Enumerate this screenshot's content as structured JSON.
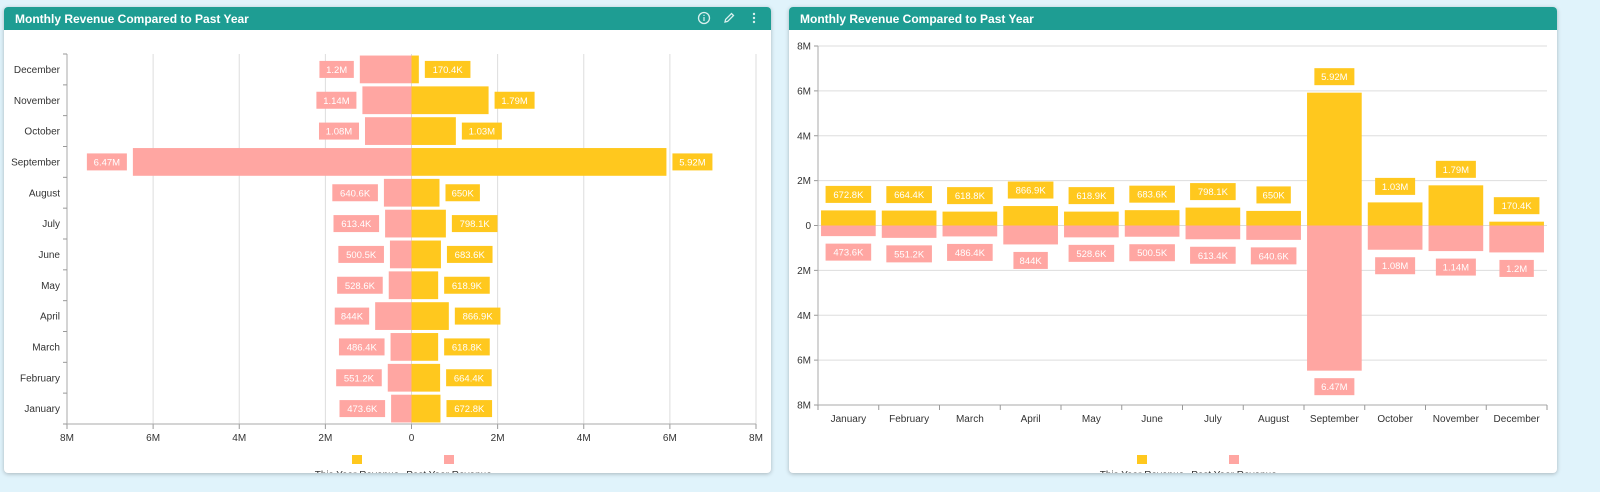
{
  "colors": {
    "header": "#1e9d93",
    "this_year": "#ffc81e",
    "past_year": "#ffa6a2",
    "grid": "#dddddd",
    "axis_text": "#333333"
  },
  "panels": [
    {
      "title": "Monthly Revenue Compared to Past Year",
      "icons": [
        "info-icon",
        "edit-icon",
        "more-vertical-icon"
      ]
    },
    {
      "title": "Monthly Revenue Compared to Past Year"
    }
  ],
  "chart_data": [
    {
      "type": "bar",
      "orientation": "horizontal",
      "categories": [
        "January",
        "February",
        "March",
        "April",
        "May",
        "June",
        "July",
        "August",
        "September",
        "October",
        "November",
        "December"
      ],
      "series": [
        {
          "name": "This Year Revenue",
          "values": [
            672800,
            664400,
            618800,
            866900,
            618900,
            683600,
            798100,
            650000,
            5920000,
            1030000,
            1790000,
            170400
          ],
          "labels": [
            "672.8K",
            "664.4K",
            "618.8K",
            "866.9K",
            "618.9K",
            "683.6K",
            "798.1K",
            "650K",
            "5.92M",
            "1.03M",
            "1.79M",
            "170.4K"
          ]
        },
        {
          "name": "Past Year Revenue",
          "values": [
            473600,
            551200,
            486400,
            844000,
            528600,
            500500,
            613400,
            640600,
            6470000,
            1080000,
            1140000,
            1200000
          ],
          "labels": [
            "473.6K",
            "551.2K",
            "486.4K",
            "844K",
            "528.6K",
            "500.5K",
            "613.4K",
            "640.6K",
            "6.47M",
            "1.08M",
            "1.14M",
            "1.2M"
          ]
        }
      ],
      "value_axis": {
        "min": -8000000,
        "max": 8000000,
        "ticks": [
          -8000000,
          -6000000,
          -4000000,
          -2000000,
          0,
          2000000,
          4000000,
          6000000,
          8000000
        ],
        "tick_labels": [
          "8M",
          "6M",
          "4M",
          "2M",
          "0",
          "2M",
          "4M",
          "6M",
          "8M"
        ]
      },
      "grid": true,
      "legend": "bottom-center"
    },
    {
      "type": "bar",
      "orientation": "vertical",
      "categories": [
        "January",
        "February",
        "March",
        "April",
        "May",
        "June",
        "July",
        "August",
        "September",
        "October",
        "November",
        "December"
      ],
      "series": [
        {
          "name": "This Year Revenue",
          "values": [
            672800,
            664400,
            618800,
            866900,
            618900,
            683600,
            798100,
            650000,
            5920000,
            1030000,
            1790000,
            170400
          ],
          "labels": [
            "672.8K",
            "664.4K",
            "618.8K",
            "866.9K",
            "618.9K",
            "683.6K",
            "798.1K",
            "650K",
            "5.92M",
            "1.03M",
            "1.79M",
            "170.4K"
          ]
        },
        {
          "name": "Past Year Revenue",
          "values": [
            473600,
            551200,
            486400,
            844000,
            528600,
            500500,
            613400,
            640600,
            6470000,
            1080000,
            1140000,
            1200000
          ],
          "labels": [
            "473.6K",
            "551.2K",
            "486.4K",
            "844K",
            "528.6K",
            "500.5K",
            "613.4K",
            "640.6K",
            "6.47M",
            "1.08M",
            "1.14M",
            "1.2M"
          ]
        }
      ],
      "value_axis": {
        "min": -8000000,
        "max": 8000000,
        "ticks": [
          8000000,
          6000000,
          4000000,
          2000000,
          0,
          -2000000,
          -4000000,
          -6000000,
          -8000000
        ],
        "tick_labels": [
          "8M",
          "6M",
          "4M",
          "2M",
          "0",
          "2M",
          "4M",
          "6M",
          "8M"
        ]
      },
      "grid": true,
      "legend": "bottom-center"
    }
  ]
}
